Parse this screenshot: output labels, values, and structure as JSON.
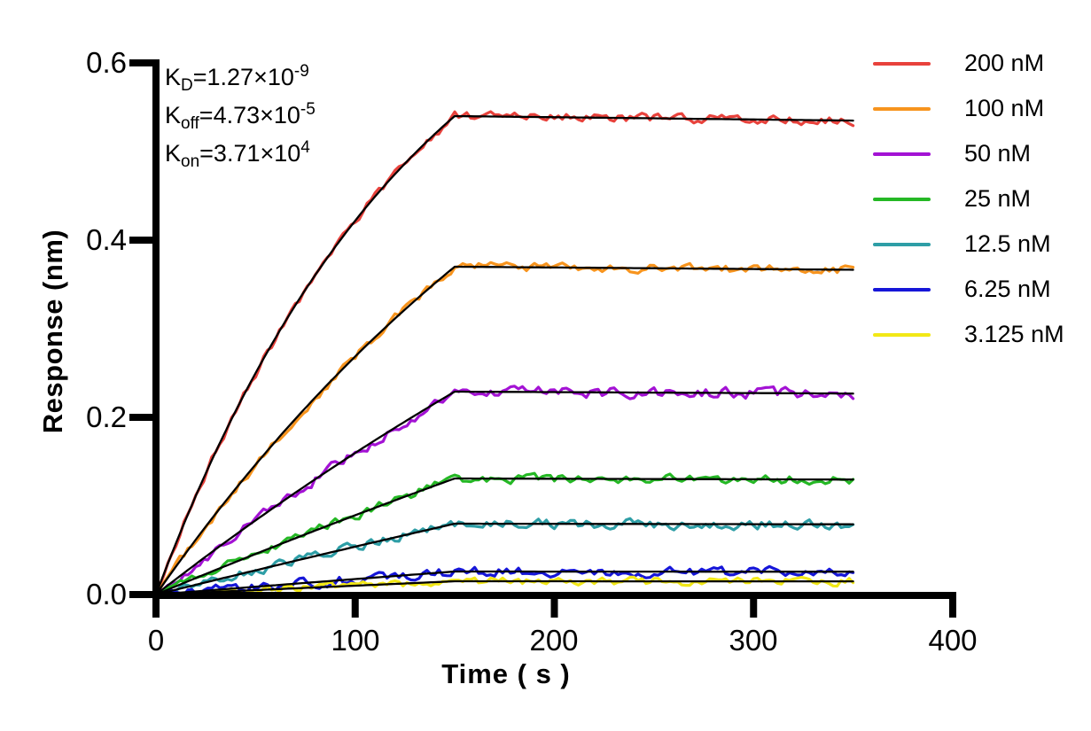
{
  "figure": {
    "background": "#FFFFFF"
  },
  "annotation": {
    "lines": [
      {
        "base": "K",
        "sub": "D",
        "eq": "=1.27×10",
        "sup": "-9"
      },
      {
        "base": "K",
        "sub": "off",
        "eq": "=4.73×10",
        "sup": "-5"
      },
      {
        "base": "K",
        "sub": "on",
        "eq": "=3.71×10",
        "sup": "4"
      }
    ]
  },
  "chart_data": {
    "type": "line",
    "title": "",
    "xlabel": "Time ( s )",
    "ylabel": "Response (nm)",
    "xlim": [
      0,
      400
    ],
    "ylim": [
      0,
      0.6
    ],
    "x_ticks": [
      "0",
      "100",
      "200",
      "300",
      "400"
    ],
    "y_ticks": [
      "0.0",
      "0.2",
      "0.4",
      "0.6"
    ],
    "grid": false,
    "legend_position": "right-outside",
    "axis_color": "#000000",
    "fit_line_color": "#000000",
    "association_end_s": 150,
    "curve_end_s": 350,
    "k_off_per_s": 4.73e-05,
    "series": [
      {
        "name": "200 nM",
        "color": "#E8423C",
        "response_end_assoc_nm": 0.54,
        "k_obs_per_s": 0.0075,
        "noise_nm": 0.0045
      },
      {
        "name": "100 nM",
        "color": "#F7941E",
        "response_end_assoc_nm": 0.37,
        "k_obs_per_s": 0.0037,
        "noise_nm": 0.0045
      },
      {
        "name": "50 nM",
        "color": "#A312D4",
        "response_end_assoc_nm": 0.229,
        "k_obs_per_s": 0.0019,
        "noise_nm": 0.0055
      },
      {
        "name": "25 nM",
        "color": "#25B825",
        "response_end_assoc_nm": 0.131,
        "k_obs_per_s": 0.00098,
        "noise_nm": 0.0045
      },
      {
        "name": "12.5 nM",
        "color": "#2E9EA6",
        "response_end_assoc_nm": 0.08,
        "k_obs_per_s": 0.00051,
        "noise_nm": 0.005
      },
      {
        "name": "6.25 nM",
        "color": "#1616D8",
        "response_end_assoc_nm": 0.026,
        "k_obs_per_s": 0.00028,
        "noise_nm": 0.005
      },
      {
        "name": "3.125 nM",
        "color": "#F2E816",
        "response_end_assoc_nm": 0.015,
        "k_obs_per_s": 0.00016,
        "noise_nm": 0.0042
      }
    ]
  }
}
